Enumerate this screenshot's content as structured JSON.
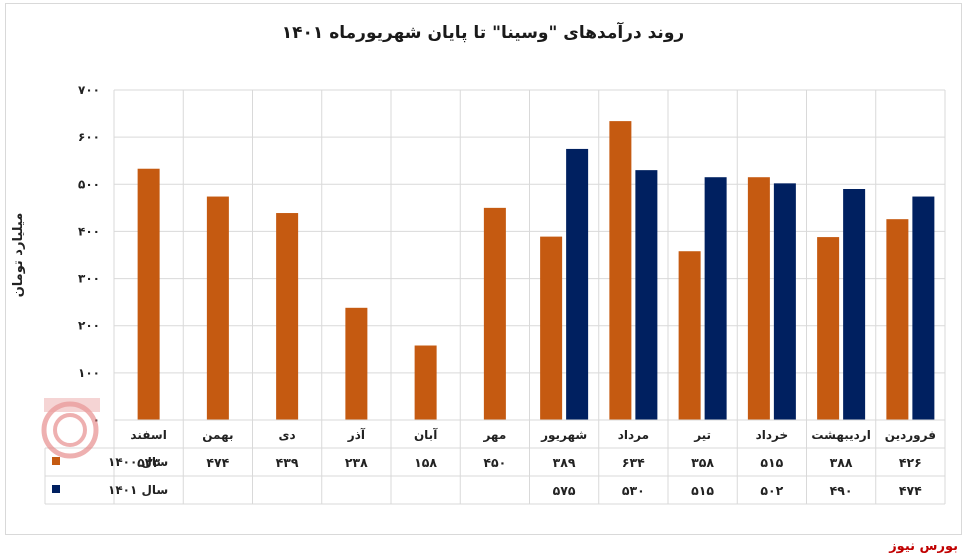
{
  "source": "بورس نیوز",
  "chart_data": {
    "type": "bar",
    "title": "روند درآمدهای \"وسینا\" تا پایان شهریورماه ۱۴۰۱",
    "ylabel": "میلیارد تومان",
    "ylim": [
      0,
      700
    ],
    "yticks": [
      "۰",
      "۱۰۰",
      "۲۰۰",
      "۳۰۰",
      "۴۰۰",
      "۵۰۰",
      "۶۰۰",
      "۷۰۰"
    ],
    "grid": true,
    "legend": "bottom-left data table",
    "categories": [
      "فروردین",
      "اردیبهشت",
      "خرداد",
      "تیر",
      "مرداد",
      "شهریور",
      "مهر",
      "آبان",
      "آذر",
      "دی",
      "بهمن",
      "اسفند"
    ],
    "series": [
      {
        "name": "سال ۱۴۰۰",
        "color": "#c55a11",
        "values": [
          426,
          388,
          515,
          358,
          634,
          389,
          450,
          158,
          238,
          439,
          474,
          533
        ],
        "labels": [
          "۴۲۶",
          "۳۸۸",
          "۵۱۵",
          "۳۵۸",
          "۶۳۴",
          "۳۸۹",
          "۴۵۰",
          "۱۵۸",
          "۲۳۸",
          "۴۳۹",
          "۴۷۴",
          "۵۳۳"
        ]
      },
      {
        "name": "سال ۱۴۰۱",
        "color": "#002060",
        "values": [
          474,
          490,
          502,
          515,
          530,
          575,
          null,
          null,
          null,
          null,
          null,
          null
        ],
        "labels": [
          "۴۷۴",
          "۴۹۰",
          "۵۰۲",
          "۵۱۵",
          "۵۳۰",
          "۵۷۵",
          "",
          "",
          "",
          "",
          "",
          ""
        ]
      }
    ]
  }
}
